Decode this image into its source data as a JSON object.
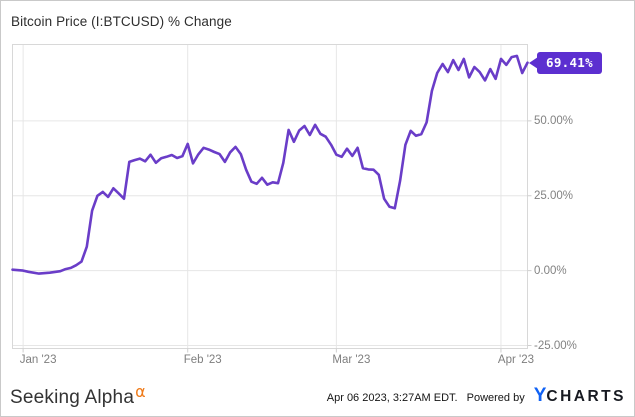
{
  "title": "Bitcoin Price (I:BTCUSD) % Change",
  "badge": {
    "label": "69.41%",
    "color": "#5c2fd0"
  },
  "footer": {
    "brand": "Seeking Alpha",
    "brand_mark": "α",
    "brand_mark_color": "#ef7b1a",
    "timestamp": "Apr 06 2023, 3:27AM EDT.",
    "powered_by": "Powered by",
    "ycharts_y": "Y",
    "ycharts_rest": "CHARTS",
    "ycharts_y_color": "#1062f5",
    "ycharts_rest_color": "#171a21"
  },
  "chart_data": {
    "type": "line",
    "title": "Bitcoin Price (I:BTCUSD) % Change",
    "series_name": "Bitcoin Price % Change",
    "line_color": "#6a3dc8",
    "grid": true,
    "legend_position": "none",
    "x_domain": [
      "2022-12-30",
      "2023-04-06"
    ],
    "ylim": [
      -26,
      75.5
    ],
    "last_value": 69.41,
    "y_ticks": [
      {
        "label": "50.00%",
        "value": 50
      },
      {
        "label": "25.00%",
        "value": 25
      },
      {
        "label": "0.00%",
        "value": 0
      },
      {
        "label": "-25.00%",
        "value": -25
      }
    ],
    "x_ticks": [
      {
        "label": "Jan '23",
        "date": "2023-01-01"
      },
      {
        "label": "Feb '23",
        "date": "2023-02-01"
      },
      {
        "label": "Mar '23",
        "date": "2023-03-01"
      },
      {
        "label": "Apr '23",
        "date": "2023-04-01"
      }
    ],
    "points": [
      [
        "2022-12-30",
        0.3
      ],
      [
        "2023-01-01",
        0.0
      ],
      [
        "2023-01-02",
        -0.4
      ],
      [
        "2023-01-04",
        -1.0
      ],
      [
        "2023-01-06",
        -0.7
      ],
      [
        "2023-01-08",
        -0.2
      ],
      [
        "2023-01-09",
        0.5
      ],
      [
        "2023-01-10",
        0.9
      ],
      [
        "2023-01-11",
        1.8
      ],
      [
        "2023-01-12",
        3.0
      ],
      [
        "2023-01-13",
        8.0
      ],
      [
        "2023-01-14",
        20.0
      ],
      [
        "2023-01-15",
        25.0
      ],
      [
        "2023-01-16",
        26.3
      ],
      [
        "2023-01-17",
        24.6
      ],
      [
        "2023-01-18",
        27.5
      ],
      [
        "2023-01-19",
        25.8
      ],
      [
        "2023-01-20",
        24.0
      ],
      [
        "2023-01-21",
        36.3
      ],
      [
        "2023-01-22",
        36.9
      ],
      [
        "2023-01-23",
        37.4
      ],
      [
        "2023-01-24",
        36.5
      ],
      [
        "2023-01-25",
        38.7
      ],
      [
        "2023-01-26",
        36.0
      ],
      [
        "2023-01-27",
        37.5
      ],
      [
        "2023-01-28",
        38.0
      ],
      [
        "2023-01-29",
        38.6
      ],
      [
        "2023-01-30",
        37.6
      ],
      [
        "2023-01-31",
        38.2
      ],
      [
        "2023-02-01",
        42.3
      ],
      [
        "2023-02-02",
        35.8
      ],
      [
        "2023-02-03",
        38.8
      ],
      [
        "2023-02-04",
        41.0
      ],
      [
        "2023-02-05",
        40.4
      ],
      [
        "2023-02-06",
        39.6
      ],
      [
        "2023-02-07",
        38.9
      ],
      [
        "2023-02-08",
        36.3
      ],
      [
        "2023-02-09",
        39.5
      ],
      [
        "2023-02-10",
        41.3
      ],
      [
        "2023-02-11",
        38.9
      ],
      [
        "2023-02-12",
        33.7
      ],
      [
        "2023-02-13",
        29.7
      ],
      [
        "2023-02-14",
        29.0
      ],
      [
        "2023-02-15",
        31.0
      ],
      [
        "2023-02-16",
        28.7
      ],
      [
        "2023-02-17",
        29.5
      ],
      [
        "2023-02-18",
        29.2
      ],
      [
        "2023-02-19",
        36.0
      ],
      [
        "2023-02-20",
        47.0
      ],
      [
        "2023-02-21",
        43.0
      ],
      [
        "2023-02-22",
        46.8
      ],
      [
        "2023-02-23",
        48.3
      ],
      [
        "2023-02-24",
        45.3
      ],
      [
        "2023-02-25",
        48.7
      ],
      [
        "2023-02-26",
        45.7
      ],
      [
        "2023-02-27",
        44.7
      ],
      [
        "2023-02-28",
        42.0
      ],
      [
        "2023-03-01",
        38.7
      ],
      [
        "2023-03-02",
        38.0
      ],
      [
        "2023-03-03",
        40.7
      ],
      [
        "2023-03-04",
        38.3
      ],
      [
        "2023-03-05",
        41.0
      ],
      [
        "2023-03-06",
        34.2
      ],
      [
        "2023-03-07",
        33.8
      ],
      [
        "2023-03-08",
        33.7
      ],
      [
        "2023-03-09",
        32.0
      ],
      [
        "2023-03-10",
        24.0
      ],
      [
        "2023-03-11",
        21.3
      ],
      [
        "2023-03-12",
        20.8
      ],
      [
        "2023-03-13",
        30.0
      ],
      [
        "2023-03-14",
        42.0
      ],
      [
        "2023-03-15",
        46.7
      ],
      [
        "2023-03-16",
        45.0
      ],
      [
        "2023-03-17",
        45.6
      ],
      [
        "2023-03-18",
        49.5
      ],
      [
        "2023-03-19",
        60.0
      ],
      [
        "2023-03-20",
        66.0
      ],
      [
        "2023-03-21",
        69.0
      ],
      [
        "2023-03-22",
        66.3
      ],
      [
        "2023-03-23",
        70.3
      ],
      [
        "2023-03-24",
        67.0
      ],
      [
        "2023-03-25",
        70.7
      ],
      [
        "2023-03-26",
        64.5
      ],
      [
        "2023-03-27",
        68.0
      ],
      [
        "2023-03-28",
        66.3
      ],
      [
        "2023-03-29",
        63.5
      ],
      [
        "2023-03-30",
        67.3
      ],
      [
        "2023-03-31",
        64.0
      ],
      [
        "2023-04-01",
        70.7
      ],
      [
        "2023-04-02",
        68.7
      ],
      [
        "2023-04-03",
        71.3
      ],
      [
        "2023-04-04",
        71.7
      ],
      [
        "2023-04-05",
        66.0
      ],
      [
        "2023-04-06",
        69.41
      ]
    ]
  }
}
